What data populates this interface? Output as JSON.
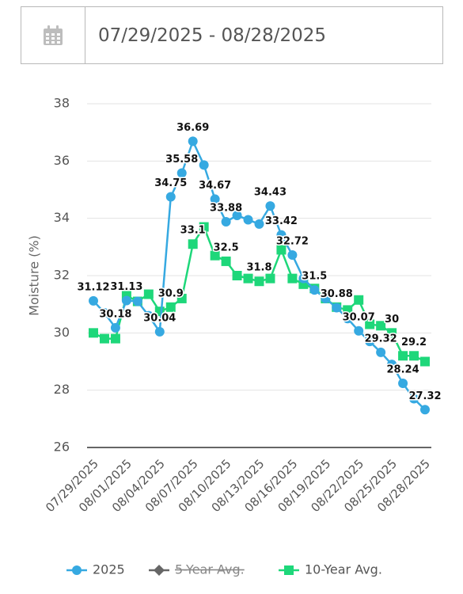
{
  "date_range": "07/29/2025 - 08/28/2025",
  "chart_data": {
    "type": "line",
    "y_label": "Moisture (%)",
    "categories": [
      "07/29/2025",
      null,
      null,
      "08/01/2025",
      null,
      null,
      "08/04/2025",
      null,
      null,
      "08/07/2025",
      null,
      null,
      "08/10/2025",
      null,
      null,
      "08/13/2025",
      null,
      null,
      "08/16/2025",
      null,
      null,
      "08/19/2025",
      null,
      null,
      "08/22/2025",
      null,
      null,
      "08/25/2025",
      null,
      null,
      "08/28/2025"
    ],
    "ylim": [
      26,
      38
    ],
    "yticks": [
      26,
      28,
      30,
      32,
      34,
      36,
      38
    ],
    "grid": true,
    "series": [
      {
        "name": "2025",
        "color": "#36a9e1",
        "marker": "circle",
        "values": [
          31.12,
          30.7,
          30.18,
          31.13,
          31.1,
          30.6,
          30.04,
          34.75,
          35.58,
          36.69,
          35.86,
          34.67,
          33.88,
          34.1,
          33.95,
          33.8,
          34.43,
          33.42,
          32.72,
          31.9,
          31.5,
          31.2,
          30.88,
          30.5,
          30.07,
          29.7,
          29.32,
          28.9,
          28.24,
          27.7,
          27.32
        ],
        "value_labels": [
          "31.12",
          null,
          "30.18",
          "31.13",
          null,
          null,
          "30.04",
          "34.75",
          "35.58",
          "36.69",
          null,
          "34.67",
          "33.88",
          null,
          null,
          null,
          "34.43",
          "33.42",
          "32.72",
          null,
          "31.5",
          null,
          "30.88",
          null,
          "30.07",
          null,
          "29.32",
          null,
          "28.24",
          null,
          "27.32"
        ]
      },
      {
        "name": "5-Year Avg.",
        "color": "#666666",
        "marker": "diamond",
        "hidden": true,
        "values": [
          null,
          null,
          null,
          null,
          null,
          null,
          null,
          null,
          null,
          null,
          null,
          null,
          null,
          null,
          null,
          null,
          null,
          null,
          null,
          null,
          null,
          null,
          null,
          null,
          null,
          null,
          null,
          null,
          null,
          null,
          null
        ]
      },
      {
        "name": "10-Year Avg.",
        "color": "#1ed77a",
        "marker": "square",
        "values": [
          30.0,
          29.8,
          29.8,
          31.3,
          31.1,
          31.35,
          30.75,
          30.9,
          31.2,
          33.1,
          33.7,
          32.7,
          32.5,
          32.0,
          31.9,
          31.8,
          31.9,
          32.9,
          31.9,
          31.7,
          31.55,
          31.2,
          30.9,
          30.8,
          31.15,
          30.3,
          30.25,
          30.0,
          29.2,
          29.2,
          29.0
        ],
        "value_labels": [
          null,
          null,
          null,
          null,
          null,
          null,
          null,
          "30.9",
          null,
          "33.1",
          null,
          null,
          "32.5",
          null,
          null,
          "31.8",
          null,
          null,
          null,
          null,
          null,
          null,
          null,
          null,
          null,
          null,
          null,
          "30",
          null,
          "29.2",
          null
        ]
      }
    ]
  }
}
